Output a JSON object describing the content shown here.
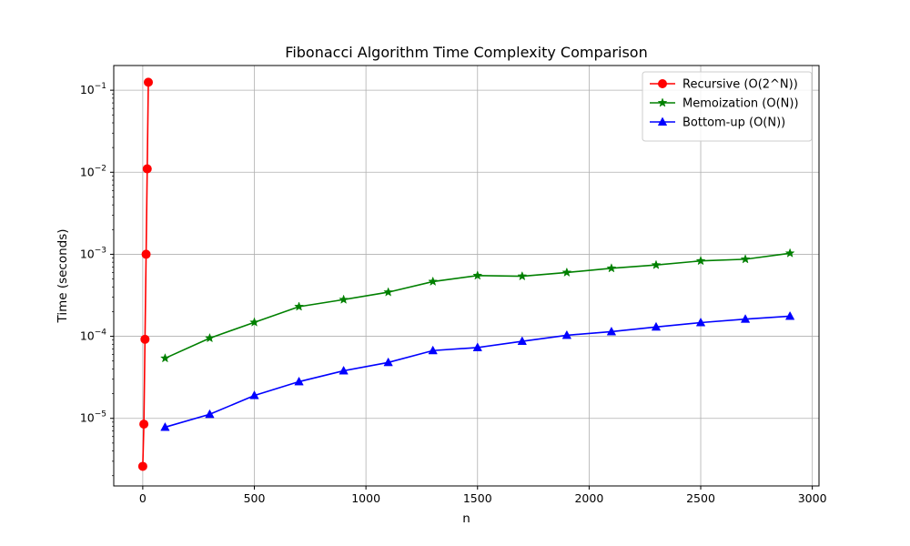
{
  "chart_data": {
    "type": "line",
    "title": "Fibonacci Algorithm Time Complexity Comparison",
    "xlabel": "n",
    "ylabel": "Time (seconds)",
    "x_scale": "linear",
    "y_scale": "log",
    "xlim": [
      -130,
      3030
    ],
    "ylim": [
      1.5e-06,
      0.2
    ],
    "x_ticks": [
      0,
      500,
      1000,
      1500,
      2000,
      2500,
      3000
    ],
    "x_tick_labels": [
      "0",
      "500",
      "1000",
      "1500",
      "2000",
      "2500",
      "3000"
    ],
    "y_ticks": [
      1e-05,
      0.0001,
      0.001,
      0.01,
      0.1
    ],
    "y_tick_labels": [
      {
        "base": "10",
        "exp": "−5"
      },
      {
        "base": "10",
        "exp": "−4"
      },
      {
        "base": "10",
        "exp": "−3"
      },
      {
        "base": "10",
        "exp": "−2"
      },
      {
        "base": "10",
        "exp": "−1"
      }
    ],
    "grid": true,
    "legend_position": "top-right",
    "series": [
      {
        "name": "Recursive (O(2^N))",
        "color": "#ff0000",
        "marker": "circle",
        "x": [
          0,
          5,
          10,
          15,
          20,
          25
        ],
        "y": [
          2.6e-06,
          8.5e-06,
          9.2e-05,
          0.001,
          0.011,
          0.125
        ]
      },
      {
        "name": "Memoization (O(N))",
        "color": "#008000",
        "marker": "star",
        "x": [
          100,
          300,
          500,
          700,
          900,
          1100,
          1300,
          1500,
          1700,
          1900,
          2100,
          2300,
          2500,
          2700,
          2900
        ],
        "y": [
          5.4e-05,
          9.5e-05,
          0.000148,
          0.00023,
          0.00028,
          0.000345,
          0.000465,
          0.00055,
          0.00054,
          0.0006,
          0.000675,
          0.00074,
          0.00083,
          0.00087,
          0.00103
        ]
      },
      {
        "name": "Bottom-up (O(N))",
        "color": "#0000ff",
        "marker": "triangle",
        "x": [
          100,
          300,
          500,
          700,
          900,
          1100,
          1300,
          1500,
          1700,
          1900,
          2100,
          2300,
          2500,
          2700,
          2900
        ],
        "y": [
          7.8e-06,
          1.12e-05,
          1.9e-05,
          2.8e-05,
          3.8e-05,
          4.8e-05,
          6.7e-05,
          7.3e-05,
          8.7e-05,
          0.000103,
          0.000114,
          0.00013,
          0.000147,
          0.000162,
          0.000176
        ]
      }
    ]
  }
}
